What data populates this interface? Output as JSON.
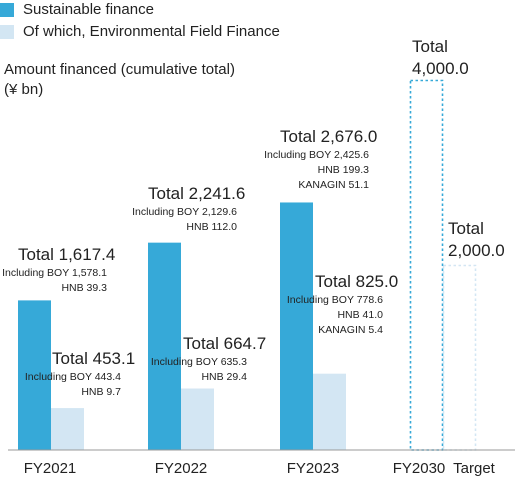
{
  "legend": [
    {
      "label": "Sustainable finance",
      "color": "#36a9d8"
    },
    {
      "label": "Of which, Environmental Field Finance",
      "color": "#d3e6f3"
    }
  ],
  "axis_title": {
    "line1": "Amount financed (cumulative total)",
    "line2": "(¥ bn)"
  },
  "chart_data": {
    "type": "bar",
    "categories": [
      "FY2021",
      "FY2022",
      "FY2023",
      "FY2030Target"
    ],
    "category_labels": [
      "FY2021",
      "FY2022",
      "FY2023",
      "FY2030",
      "Target"
    ],
    "ylabel": "Amount financed (cumulative total) (¥ bn)",
    "series": [
      {
        "name": "Sustainable finance",
        "color": "#36a9d8",
        "values": [
          1617.4,
          2241.6,
          2676.0,
          4000.0
        ],
        "target_flags": [
          false,
          false,
          false,
          true
        ],
        "labels": [
          {
            "total": "Total 1,617.4",
            "details": [
              "Including BOY 1,578.1",
              "HNB 39.3"
            ]
          },
          {
            "total": "Total 2,241.6",
            "details": [
              "Including BOY 2,129.6",
              "HNB 112.0"
            ]
          },
          {
            "total": "Total 2,676.0",
            "details": [
              "Including BOY 2,425.6",
              "HNB 199.3",
              "KANAGIN 51.1"
            ]
          },
          {
            "total": "Total",
            "details": [
              "4,000.0"
            ]
          }
        ]
      },
      {
        "name": "Of which, Environmental Field Finance",
        "color": "#d3e6f3",
        "values": [
          453.1,
          664.7,
          825.0,
          2000.0
        ],
        "target_flags": [
          false,
          false,
          false,
          true
        ],
        "labels": [
          {
            "total": "Total 453.1",
            "details": [
              "Including BOY 443.4",
              "HNB 9.7"
            ]
          },
          {
            "total": "Total 664.7",
            "details": [
              "Including BOY 635.3",
              "HNB 29.4"
            ]
          },
          {
            "total": "Total 825.0",
            "details": [
              "Including BOY 778.6",
              "HNB 41.0",
              "KANAGIN 5.4"
            ]
          },
          {
            "total": "Total",
            "details": [
              "2,000.0"
            ]
          }
        ]
      }
    ]
  }
}
